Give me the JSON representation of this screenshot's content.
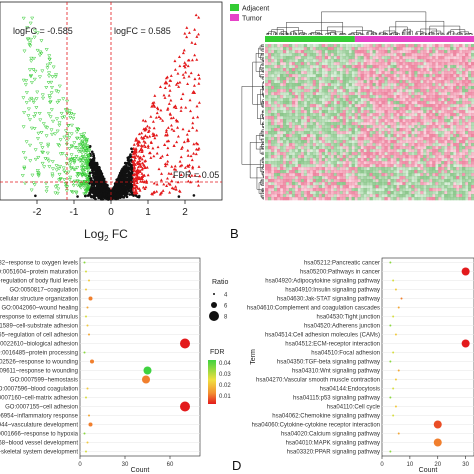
{
  "colors": {
    "up": "#e31a1c",
    "down": "#33cc33",
    "ns": "#111111",
    "heat_high": "#f5b8c8",
    "heat_low": "#9bd29b",
    "adjacent": "#33cc33",
    "tumor": "#e642c8"
  },
  "panels": {
    "b": "B",
    "d": "D"
  },
  "chart_data": [
    {
      "type": "scatter",
      "name": "volcano",
      "xlabel_main": "Log",
      "xlabel_sub": "2",
      "xlabel_tail": " FC",
      "xlim": [
        -3,
        3
      ],
      "x_ticks": [
        "-2",
        "-1",
        "0",
        "1",
        "2"
      ],
      "thresholds": {
        "logfc_neg": -0.585,
        "logfc_pos": 0.585,
        "fdr": 0.05
      },
      "annotations": {
        "logfc_neg": "logFC = -0.585",
        "logfc_pos": "logFC = 0.585",
        "fdr": "FDR = 0.05"
      }
    },
    {
      "type": "heatmap",
      "name": "expression-heatmap",
      "legend": [
        {
          "label": "Adjacent",
          "color": "#33cc33"
        },
        {
          "label": "Tumor",
          "color": "#e642c8"
        }
      ],
      "adjacent_fraction": 0.43
    },
    {
      "type": "scatter",
      "name": "go-dotplot",
      "xlabel": "Count",
      "x_ticks": [
        "0",
        "30",
        "60"
      ],
      "xlim": [
        0,
        80
      ],
      "legend_ratio_title": "Ratio",
      "legend_ratio": [
        "4",
        "6",
        "8"
      ],
      "legend_fdr_title": "FDR",
      "legend_fdr": [
        "0.04",
        "0.03",
        "0.02",
        "0.01"
      ],
      "terms": [
        {
          "label": "...70482~response to oxygen levels",
          "count": 3,
          "ratio": 4,
          "fdr": 0.04
        },
        {
          "label": "GO:0051604~protein maturation",
          "count": 4,
          "ratio": 4,
          "fdr": 0.035
        },
        {
          "label": "...0050878~regulation of body fluid levels",
          "count": 6,
          "ratio": 4,
          "fdr": 0.03
        },
        {
          "label": "GO:0050817~coagulation",
          "count": 4,
          "ratio": 4,
          "fdr": 0.03
        },
        {
          "label": "...extracellular structure organization",
          "count": 7,
          "ratio": 5,
          "fdr": 0.02
        },
        {
          "label": "GO:0042060~wound healing",
          "count": 5,
          "ratio": 4,
          "fdr": 0.025
        },
        {
          "label": "...of response to external stimulus",
          "count": 4,
          "ratio": 4,
          "fdr": 0.035
        },
        {
          "label": "...0031589~cell-substrate adhesion",
          "count": 5,
          "ratio": 4,
          "fdr": 0.03
        },
        {
          "label": "...30155~regulation of cell adhesion",
          "count": 6,
          "ratio": 4,
          "fdr": 0.025
        },
        {
          "label": "...GO:0022610~biological adhesion",
          "count": 70,
          "ratio": 8,
          "fdr": 0.01
        },
        {
          "label": "GO:0016485~protein processing",
          "count": 3,
          "ratio": 4,
          "fdr": 0.04
        },
        {
          "label": "...0002526~response to wounding",
          "count": 8,
          "ratio": 5,
          "fdr": 0.02
        },
        {
          "label": "GO:0009611~response to wounding",
          "count": 45,
          "ratio": 7,
          "fdr": 0.045
        },
        {
          "label": "GO:0007599~hemostasis",
          "count": 44,
          "ratio": 7,
          "fdr": 0.02
        },
        {
          "label": "GO:0007596~blood coagulation",
          "count": 5,
          "ratio": 4,
          "fdr": 0.03
        },
        {
          "label": "GO:0007160~cell-matrix adhesion",
          "count": 4,
          "ratio": 4,
          "fdr": 0.035
        },
        {
          "label": "GO:0007155~cell adhesion",
          "count": 70,
          "ratio": 8,
          "fdr": 0.01
        },
        {
          "label": "...0006954~inflammatory response",
          "count": 6,
          "ratio": 4,
          "fdr": 0.025
        },
        {
          "label": "...001944~vasculature development",
          "count": 7,
          "ratio": 5,
          "fdr": 0.02
        },
        {
          "label": "...0001666~response to hypoxia",
          "count": 3,
          "ratio": 4,
          "fdr": 0.04
        },
        {
          "label": "...01568~blood vessel development",
          "count": 5,
          "ratio": 4,
          "fdr": 0.03
        },
        {
          "label": "...001~skeletal system development",
          "count": 4,
          "ratio": 4,
          "fdr": 0.035
        }
      ]
    },
    {
      "type": "scatter",
      "name": "kegg-dotplot",
      "xlabel": "Count",
      "ylabel": "Term",
      "x_ticks": [
        "0",
        "10",
        "20",
        "30"
      ],
      "xlim": [
        0,
        33
      ],
      "terms": [
        {
          "label": "hsa05212:Pancreatic cancer",
          "count": 3,
          "fdr": 0.04
        },
        {
          "label": "hsa05200:Pathways in cancer",
          "count": 30,
          "fdr": 0.01
        },
        {
          "label": "hsa04920:Adipocytokine signaling pathway",
          "count": 4,
          "fdr": 0.035
        },
        {
          "label": "hsa04910:Insulin signaling pathway",
          "count": 5,
          "fdr": 0.03
        },
        {
          "label": "hsa04630:Jak-STAT signaling pathway",
          "count": 7,
          "fdr": 0.02
        },
        {
          "label": "hsa04610:Complement and coagulation cascades",
          "count": 6,
          "fdr": 0.025
        },
        {
          "label": "hsa04530:Tight junction",
          "count": 4,
          "fdr": 0.035
        },
        {
          "label": "hsa04520:Adherens junction",
          "count": 3,
          "fdr": 0.04
        },
        {
          "label": "hsa04514:Cell adhesion molecules (CAMs)",
          "count": 5,
          "fdr": 0.03
        },
        {
          "label": "hsa04512:ECM-receptor interaction",
          "count": 30,
          "fdr": 0.01
        },
        {
          "label": "hsa04510:Focal adhesion",
          "count": 4,
          "fdr": 0.035
        },
        {
          "label": "hsa04350:TGF-beta signaling pathway",
          "count": 3,
          "fdr": 0.04
        },
        {
          "label": "hsa04310:Wnt signaling pathway",
          "count": 6,
          "fdr": 0.025
        },
        {
          "label": "hsa04270:Vascular smooth muscle contraction",
          "count": 5,
          "fdr": 0.03
        },
        {
          "label": "hsa04144:Endocytosis",
          "count": 4,
          "fdr": 0.035
        },
        {
          "label": "hsa04115:p53 signaling pathway",
          "count": 3,
          "fdr": 0.04
        },
        {
          "label": "hsa04110:Cell cycle",
          "count": 5,
          "fdr": 0.03
        },
        {
          "label": "hsa04062:Chemokine signaling pathway",
          "count": 4,
          "fdr": 0.035
        },
        {
          "label": "hsa04060:Cytokine-cytokine receptor interaction",
          "count": 20,
          "fdr": 0.015
        },
        {
          "label": "hsa04020:Calcium signaling pathway",
          "count": 6,
          "fdr": 0.025
        },
        {
          "label": "hsa04010:MAPK signaling pathway",
          "count": 20,
          "fdr": 0.02
        },
        {
          "label": "hsa03320:PPAR signaling pathway",
          "count": 3,
          "fdr": 0.04
        }
      ]
    }
  ]
}
